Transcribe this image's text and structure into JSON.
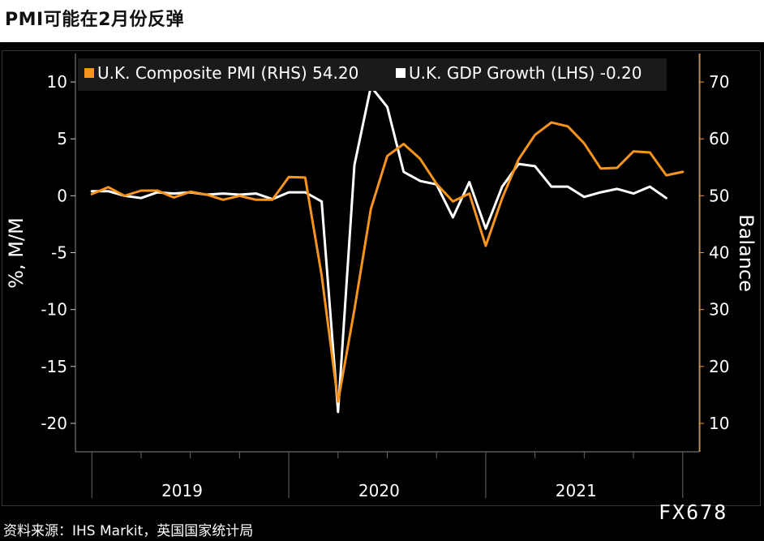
{
  "title": "PMI可能在2月份反弹",
  "source": "资料来源：IHS Markit，英国国家统计局",
  "watermark": "FX678",
  "colors": {
    "pmi": "#f7941d",
    "gdp": "#ffffff",
    "grid": "#555555",
    "background": "#000000"
  },
  "legend": {
    "pmi": "U.K. Composite PMI (RHS) 54.20",
    "gdp": "U.K. GDP Growth (LHS) -0.20"
  },
  "chart_data": {
    "type": "line",
    "title": "PMI可能在2月份反弹",
    "ylabel_left": "%, M/M",
    "ylabel_right": "Balance",
    "ylim_left": [
      -22.5,
      12.5
    ],
    "ylim_right": [
      5,
      75
    ],
    "yticks_left": [
      "10",
      "5",
      "0",
      "-5",
      "-10",
      "-15",
      "-20"
    ],
    "yticks_right": [
      "70",
      "60",
      "50",
      "40",
      "30",
      "20",
      "10"
    ],
    "year_labels": [
      "2019",
      "2020",
      "2021"
    ],
    "x_range": [
      "2018-12",
      "2022-02"
    ],
    "grid": true,
    "legend_position": "top",
    "series": [
      {
        "name": "U.K. GDP Growth (LHS) -0.20",
        "axis": "left",
        "x": [
          "2019-01",
          "2019-02",
          "2019-03",
          "2019-04",
          "2019-05",
          "2019-06",
          "2019-07",
          "2019-08",
          "2019-09",
          "2019-10",
          "2019-11",
          "2019-12",
          "2020-01",
          "2020-02",
          "2020-03",
          "2020-04",
          "2020-05",
          "2020-06",
          "2020-07",
          "2020-08",
          "2020-09",
          "2020-10",
          "2020-11",
          "2020-12",
          "2021-01",
          "2021-02",
          "2021-03",
          "2021-04",
          "2021-05",
          "2021-06",
          "2021-07",
          "2021-08",
          "2021-09",
          "2021-10",
          "2021-11",
          "2021-12"
        ],
        "values": [
          0.4,
          0.4,
          0.0,
          -0.2,
          0.3,
          0.2,
          0.3,
          0.1,
          0.2,
          0.1,
          0.2,
          -0.3,
          0.3,
          0.3,
          -0.5,
          -19.0,
          2.7,
          9.6,
          7.8,
          2.1,
          1.3,
          1.0,
          -1.9,
          1.2,
          -2.9,
          0.8,
          2.8,
          2.6,
          0.8,
          0.8,
          -0.1,
          0.3,
          0.6,
          0.2,
          0.8,
          -0.2
        ]
      },
      {
        "name": "U.K. Composite PMI (RHS) 54.20",
        "axis": "right",
        "x": [
          "2019-01",
          "2019-02",
          "2019-03",
          "2019-04",
          "2019-05",
          "2019-06",
          "2019-07",
          "2019-08",
          "2019-09",
          "2019-10",
          "2019-11",
          "2019-12",
          "2020-01",
          "2020-02",
          "2020-03",
          "2020-04",
          "2020-05",
          "2020-06",
          "2020-07",
          "2020-08",
          "2020-09",
          "2020-10",
          "2020-11",
          "2020-12",
          "2021-01",
          "2021-02",
          "2021-03",
          "2021-04",
          "2021-05",
          "2021-06",
          "2021-07",
          "2021-08",
          "2021-09",
          "2021-10",
          "2021-11",
          "2021-12",
          "2022-01"
        ],
        "values": [
          50.3,
          51.5,
          50.0,
          50.9,
          50.9,
          49.7,
          50.7,
          50.2,
          49.3,
          50.0,
          49.3,
          49.3,
          53.3,
          53.2,
          36.0,
          13.8,
          30.0,
          47.7,
          57.0,
          59.1,
          56.5,
          52.1,
          49.0,
          50.4,
          41.2,
          49.6,
          56.4,
          60.7,
          62.9,
          62.2,
          59.2,
          54.8,
          54.9,
          57.8,
          57.6,
          53.6,
          54.2
        ]
      }
    ]
  }
}
